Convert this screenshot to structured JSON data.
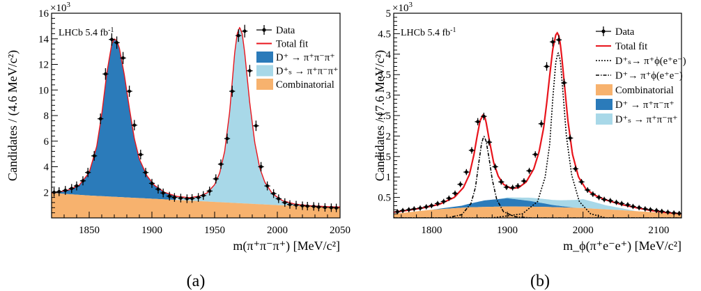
{
  "figure": {
    "panel_labels": [
      "(a)",
      "(b)"
    ]
  },
  "colors": {
    "dplus": "#2b7bba",
    "ds": "#a8d8e8",
    "combinatorial": "#f7b26e",
    "fit": "#e8141c",
    "data": "#000000"
  },
  "chart_data": [
    {
      "type": "area",
      "panel": "(a)",
      "annotation": "LHCb 5.4 fb",
      "annotation_sup": "-1",
      "exponent_label": "×10",
      "exponent_sup": "3",
      "xlabel": "m(π⁺π⁻π⁺) [MeV/c²]",
      "ylabel": "Candidates / (4.6 MeV/c²)",
      "xlim": [
        1820,
        2050
      ],
      "ylim": [
        0,
        16
      ],
      "xticks": [
        1850,
        1900,
        1950,
        2000,
        2050
      ],
      "yticks": [
        2,
        4,
        6,
        8,
        10,
        12,
        14,
        16
      ],
      "legend_position": "top-right",
      "legend": [
        {
          "label": "Data",
          "style": "data"
        },
        {
          "label": "Total fit",
          "style": "fit"
        },
        {
          "label": "D⁺ → π⁺π⁻π⁺",
          "style": "fill-dplus"
        },
        {
          "label": "D⁺ₛ → π⁺π⁻π⁺",
          "style": "fill-ds"
        },
        {
          "label": "Combinatorial",
          "style": "fill-comb"
        }
      ],
      "data_points": {
        "x": [
          1822,
          1826,
          1831,
          1836,
          1840,
          1845,
          1849,
          1854,
          1859,
          1863,
          1868,
          1872,
          1877,
          1882,
          1886,
          1891,
          1895,
          1900,
          1905,
          1909,
          1914,
          1918,
          1923,
          1928,
          1932,
          1937,
          1941,
          1946,
          1951,
          1955,
          1960,
          1964,
          1969,
          1974,
          1978,
          1983,
          1987,
          1992,
          1997,
          2001,
          2006,
          2010,
          2015,
          2020,
          2024,
          2029,
          2033,
          2038,
          2043,
          2047
        ],
        "y": [
          2.0,
          2.05,
          2.15,
          2.3,
          2.5,
          2.9,
          3.55,
          4.85,
          7.75,
          11.25,
          13.95,
          13.7,
          12.5,
          9.9,
          7.25,
          4.95,
          3.55,
          2.7,
          2.25,
          1.95,
          1.7,
          1.6,
          1.55,
          1.5,
          1.52,
          1.6,
          1.75,
          2.1,
          3.05,
          4.2,
          6.2,
          9.9,
          14.25,
          14.6,
          11.5,
          7.2,
          4.0,
          2.5,
          1.9,
          1.5,
          1.2,
          1.05,
          1.0,
          0.95,
          0.92,
          0.9,
          0.85,
          0.82,
          0.8,
          0.78
        ]
      },
      "fit_curve": {
        "x": [
          1820,
          1826,
          1834,
          1842,
          1850,
          1856,
          1860,
          1864,
          1868,
          1870,
          1872,
          1874,
          1878,
          1882,
          1886,
          1890,
          1896,
          1902,
          1910,
          1920,
          1930,
          1938,
          1944,
          1950,
          1954,
          1958,
          1962,
          1964,
          1966,
          1968,
          1970,
          1972,
          1974,
          1978,
          1982,
          1986,
          1990,
          1996,
          2004,
          2014,
          2026,
          2040,
          2050
        ],
        "y": [
          1.95,
          2.02,
          2.2,
          2.55,
          3.55,
          5.6,
          8.1,
          11.3,
          13.6,
          14.0,
          13.85,
          13.3,
          11.2,
          8.6,
          6.2,
          4.6,
          3.3,
          2.55,
          2.0,
          1.68,
          1.58,
          1.7,
          1.95,
          2.6,
          3.5,
          5.2,
          8.3,
          10.6,
          12.9,
          14.4,
          14.9,
          14.4,
          12.9,
          9.0,
          5.9,
          3.9,
          2.8,
          1.9,
          1.35,
          1.08,
          0.95,
          0.88,
          0.85
        ]
      },
      "components": [
        {
          "name": "Combinatorial",
          "x": [
            1820,
            1850,
            1900,
            1950,
            2000,
            2050
          ],
          "y": [
            1.95,
            1.75,
            1.5,
            1.25,
            1.0,
            0.8
          ]
        },
        {
          "name": "D⁺ → π⁺π⁻π⁺",
          "mean": 1870
        },
        {
          "name": "D⁺ₛ → π⁺π⁻π⁺",
          "mean": 1969
        }
      ]
    },
    {
      "type": "area",
      "panel": "(b)",
      "annotation": "LHCb 5.4 fb",
      "annotation_sup": "-1",
      "exponent_label": "×10",
      "exponent_sup": "3",
      "xlabel": "m_ϕ(π⁺e⁻e⁺) [MeV/c²]",
      "ylabel": "Candidates / (7.6 MeV/c²)",
      "xlim": [
        1750,
        2130
      ],
      "ylim": [
        0,
        5
      ],
      "xticks": [
        1800,
        1900,
        2000,
        2100
      ],
      "yticks": [
        0.5,
        1,
        1.5,
        2,
        2.5,
        3,
        3.5,
        4,
        4.5,
        5
      ],
      "legend_position": "top-right",
      "legend": [
        {
          "label": "Data",
          "style": "data"
        },
        {
          "label": "Total fit",
          "style": "fit"
        },
        {
          "label": "D⁺ₛ→ π⁺ϕ(e⁺e⁻)",
          "style": "dotted"
        },
        {
          "label": "D⁺→ π⁺ϕ(e⁺e⁻)",
          "style": "dashdot"
        },
        {
          "label": "Combinatorial",
          "style": "fill-comb"
        },
        {
          "label": "D⁺ → π⁺π⁻π⁺",
          "style": "fill-dplus"
        },
        {
          "label": "D⁺ₛ → π⁺π⁻π⁺",
          "style": "fill-ds"
        }
      ],
      "data_points": {
        "x": [
          1755,
          1762,
          1770,
          1777,
          1785,
          1793,
          1800,
          1808,
          1816,
          1823,
          1831,
          1838,
          1846,
          1853,
          1861,
          1869,
          1876,
          1884,
          1892,
          1899,
          1907,
          1914,
          1922,
          1929,
          1937,
          1945,
          1952,
          1960,
          1968,
          1975,
          1983,
          1990,
          1998,
          2006,
          2013,
          2021,
          2028,
          2036,
          2044,
          2051,
          2059,
          2066,
          2074,
          2082,
          2089,
          2097,
          2104,
          2112,
          2120,
          2127
        ],
        "y": [
          0.15,
          0.18,
          0.2,
          0.22,
          0.24,
          0.27,
          0.3,
          0.35,
          0.4,
          0.48,
          0.6,
          0.82,
          1.12,
          1.65,
          2.35,
          2.48,
          1.85,
          1.25,
          0.88,
          0.75,
          0.74,
          0.78,
          0.9,
          1.15,
          1.55,
          2.3,
          3.7,
          4.3,
          4.35,
          3.3,
          1.95,
          1.2,
          0.88,
          0.68,
          0.58,
          0.5,
          0.45,
          0.42,
          0.38,
          0.35,
          0.32,
          0.28,
          0.25,
          0.22,
          0.2,
          0.18,
          0.16,
          0.14,
          0.12,
          0.11
        ]
      },
      "fit_curve": {
        "x": [
          1750,
          1770,
          1790,
          1810,
          1830,
          1842,
          1850,
          1856,
          1860,
          1864,
          1868,
          1870,
          1872,
          1876,
          1882,
          1888,
          1895,
          1905,
          1915,
          1925,
          1935,
          1942,
          1948,
          1952,
          1956,
          1960,
          1964,
          1966,
          1968,
          1970,
          1972,
          1976,
          1980,
          1986,
          1994,
          2004,
          2016,
          2030,
          2050,
          2070,
          2090,
          2110,
          2130
        ],
        "y": [
          0.14,
          0.19,
          0.25,
          0.33,
          0.5,
          0.74,
          1.06,
          1.55,
          1.98,
          2.37,
          2.52,
          2.48,
          2.34,
          1.92,
          1.35,
          1.02,
          0.82,
          0.72,
          0.74,
          0.88,
          1.2,
          1.62,
          2.2,
          2.8,
          3.48,
          4.12,
          4.47,
          4.52,
          4.45,
          4.25,
          3.92,
          3.15,
          2.38,
          1.56,
          1.0,
          0.7,
          0.55,
          0.44,
          0.33,
          0.25,
          0.18,
          0.13,
          0.1
        ]
      },
      "components": [
        {
          "name": "Combinatorial",
          "x": [
            1750,
            1800,
            1850,
            1900,
            1950,
            2000,
            2050,
            2100,
            2130
          ],
          "y": [
            0.1,
            0.2,
            0.26,
            0.28,
            0.27,
            0.24,
            0.19,
            0.13,
            0.09
          ]
        },
        {
          "name": "D⁺ → π⁺π⁻π⁺",
          "x": [
            1800,
            1840,
            1870,
            1900,
            1930,
            1960,
            1990
          ],
          "y": [
            0.0,
            0.05,
            0.16,
            0.2,
            0.14,
            0.05,
            0.0
          ]
        },
        {
          "name": "D⁺ₛ → π⁺π⁻π⁺",
          "x": [
            1890,
            1930,
            1970,
            2000,
            2030,
            2070
          ],
          "y": [
            0.0,
            0.08,
            0.14,
            0.22,
            0.1,
            0.0
          ]
        },
        {
          "name": "D⁺→ π⁺ϕ(e⁺e⁻)",
          "x": [
            1820,
            1840,
            1852,
            1858,
            1862,
            1866,
            1869,
            1872,
            1876,
            1880,
            1886,
            1895,
            1910,
            1930
          ],
          "y": [
            0.0,
            0.08,
            0.35,
            0.75,
            1.3,
            1.82,
            2.0,
            1.88,
            1.45,
            0.95,
            0.45,
            0.15,
            0.03,
            0.0
          ]
        },
        {
          "name": "D⁺ₛ→ π⁺ϕ(e⁺e⁻)",
          "x": [
            1880,
            1920,
            1940,
            1950,
            1956,
            1960,
            1964,
            1967,
            1970,
            1974,
            1978,
            1985,
            1995,
            2010,
            2030
          ],
          "y": [
            0.0,
            0.1,
            0.4,
            1.0,
            1.8,
            2.9,
            3.8,
            4.05,
            3.85,
            2.95,
            2.0,
            1.05,
            0.4,
            0.1,
            0.0
          ]
        }
      ]
    }
  ]
}
